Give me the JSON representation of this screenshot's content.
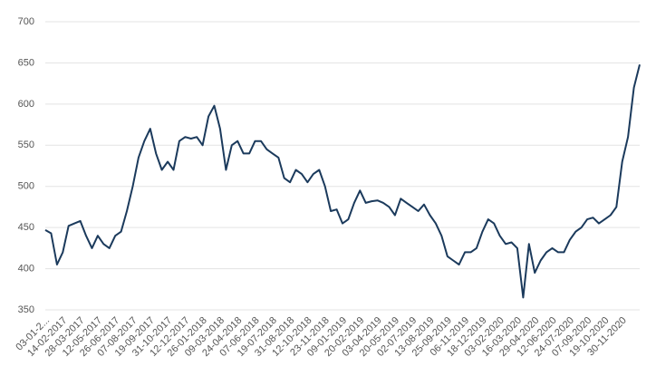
{
  "chart_data": {
    "type": "line",
    "categories": [
      "03-01-2...",
      null,
      null,
      "14-02-2017",
      null,
      null,
      "28-03-2017",
      null,
      null,
      "12-05-2017",
      null,
      null,
      "26-06-2017",
      null,
      null,
      "07-08-2017",
      null,
      null,
      "19-09-2017",
      null,
      null,
      "31-10-2017",
      null,
      null,
      "12-12-2017",
      null,
      null,
      "26-01-2018",
      null,
      null,
      "09-03-2018",
      null,
      null,
      "24-04-2018",
      null,
      null,
      "07-06-2018",
      null,
      null,
      "19-07-2018",
      null,
      null,
      "31-08-2018",
      null,
      null,
      "12-10-2018",
      null,
      null,
      "23-11-2018",
      null,
      null,
      "09-01-2019",
      null,
      null,
      "20-02-2019",
      null,
      null,
      "03-04-2019",
      null,
      null,
      "20-05-2019",
      null,
      null,
      "02-07-2019",
      null,
      null,
      "13-08-2019",
      null,
      null,
      "25-09-2019",
      null,
      null,
      "06-11-2019",
      null,
      null,
      "18-12-2019",
      null,
      null,
      "03-02-2020",
      null,
      null,
      "16-03-2020",
      null,
      null,
      "29-04-2020",
      null,
      null,
      "12-06-2020",
      null,
      null,
      "24-07-2020",
      null,
      null,
      "07-09-2020",
      null,
      null,
      "19-10-2020",
      null,
      null,
      "30-11-2020",
      null,
      null,
      null
    ],
    "series": [
      {
        "color": "#1b3a5c",
        "values": [
          447,
          443,
          405,
          420,
          452,
          455,
          458,
          440,
          425,
          440,
          430,
          425,
          440,
          445,
          470,
          500,
          535,
          555,
          570,
          540,
          520,
          530,
          520,
          555,
          560,
          558,
          560,
          550,
          585,
          598,
          570,
          520,
          550,
          555,
          540,
          540,
          555,
          555,
          545,
          540,
          535,
          510,
          505,
          520,
          515,
          505,
          515,
          520,
          500,
          470,
          472,
          455,
          460,
          480,
          495,
          480,
          482,
          483,
          480,
          475,
          465,
          485,
          480,
          475,
          470,
          478,
          465,
          455,
          440,
          415,
          410,
          405,
          420,
          420,
          425,
          445,
          460,
          455,
          440,
          430,
          432,
          425,
          365,
          430,
          395,
          410,
          420,
          425,
          420,
          420,
          435,
          445,
          450,
          460,
          462,
          455,
          460,
          465,
          475,
          530,
          560,
          620,
          648
        ]
      }
    ],
    "ylim": [
      350,
      700
    ],
    "yticks": [
      350,
      400,
      450,
      500,
      550,
      600,
      650,
      700
    ],
    "grid": true
  }
}
